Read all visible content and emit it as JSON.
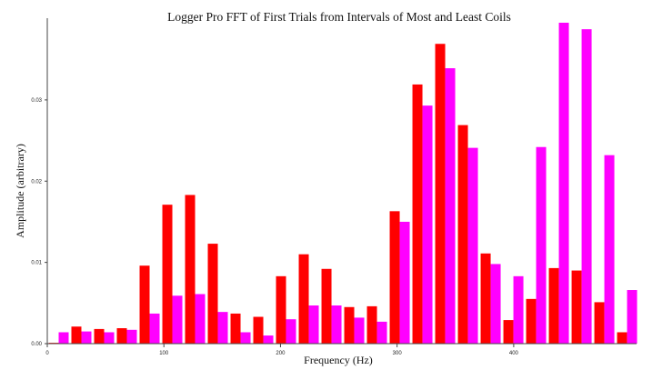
{
  "chart_data": {
    "type": "bar",
    "title": "Logger Pro FFT of First Trials from Intervals of Most and Least Coils",
    "xlabel": "Frequency (Hz)",
    "ylabel": "Amplitude (arbitrary)",
    "x_ticks": [
      {
        "value": 0,
        "label": "0"
      },
      {
        "value": 100,
        "label": "100"
      },
      {
        "value": 200,
        "label": "200"
      },
      {
        "value": 300,
        "label": "300"
      },
      {
        "value": 400,
        "label": "400"
      }
    ],
    "y_ticks": [
      {
        "value": 0.0,
        "label": "0.00"
      },
      {
        "value": 0.01,
        "label": "0.01"
      },
      {
        "value": 0.02,
        "label": "0.02"
      },
      {
        "value": 0.03,
        "label": "0.03"
      }
    ],
    "xlim": [
      0,
      500
    ],
    "ylim": [
      0,
      0.0395
    ],
    "grid": false,
    "legend": "none",
    "bar_slot_hz": 19.5,
    "series": [
      {
        "color": "#ff0000",
        "values": [
          0.0001,
          0.0021,
          0.0018,
          0.0019,
          0.0096,
          0.0171,
          0.0183,
          0.0123,
          0.0037,
          0.0033,
          0.0083,
          0.011,
          0.0092,
          0.0045,
          0.0046,
          0.0163,
          0.0319,
          0.0369,
          0.0269,
          0.0111,
          0.0029,
          0.0055,
          0.0093,
          0.009,
          0.0051,
          0.0014
        ]
      },
      {
        "color": "#ff00ff",
        "values": [
          0.0014,
          0.0015,
          0.0014,
          0.0017,
          0.0037,
          0.0059,
          0.0061,
          0.0039,
          0.0014,
          0.001,
          0.003,
          0.0047,
          0.0047,
          0.0032,
          0.0027,
          0.015,
          0.0293,
          0.0339,
          0.0241,
          0.0098,
          0.0083,
          0.0242,
          0.0395,
          0.0387,
          0.0232,
          0.0066
        ]
      }
    ]
  }
}
